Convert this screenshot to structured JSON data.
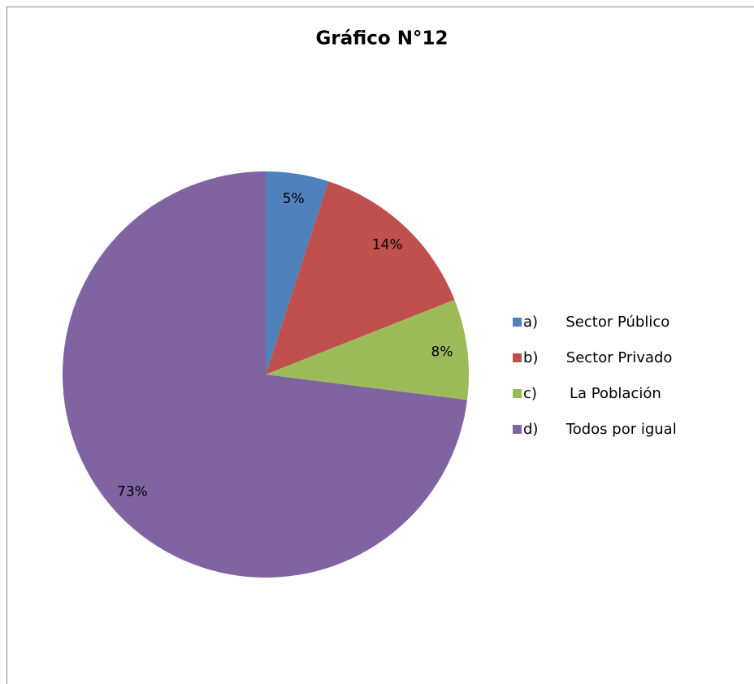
{
  "chart_data": {
    "type": "pie",
    "title": "Gráfico N°12",
    "categories": [
      "a)      Sector Público",
      "b)      Sector Privado",
      "c)       La Población",
      "d)      Todos por igual"
    ],
    "values": [
      5,
      14,
      8,
      73
    ],
    "value_labels": [
      "5%",
      "14%",
      "8%",
      "73%"
    ],
    "colors": [
      "#4f81bd",
      "#c0504d",
      "#9bbb59",
      "#8064a2"
    ],
    "legend": "right"
  }
}
